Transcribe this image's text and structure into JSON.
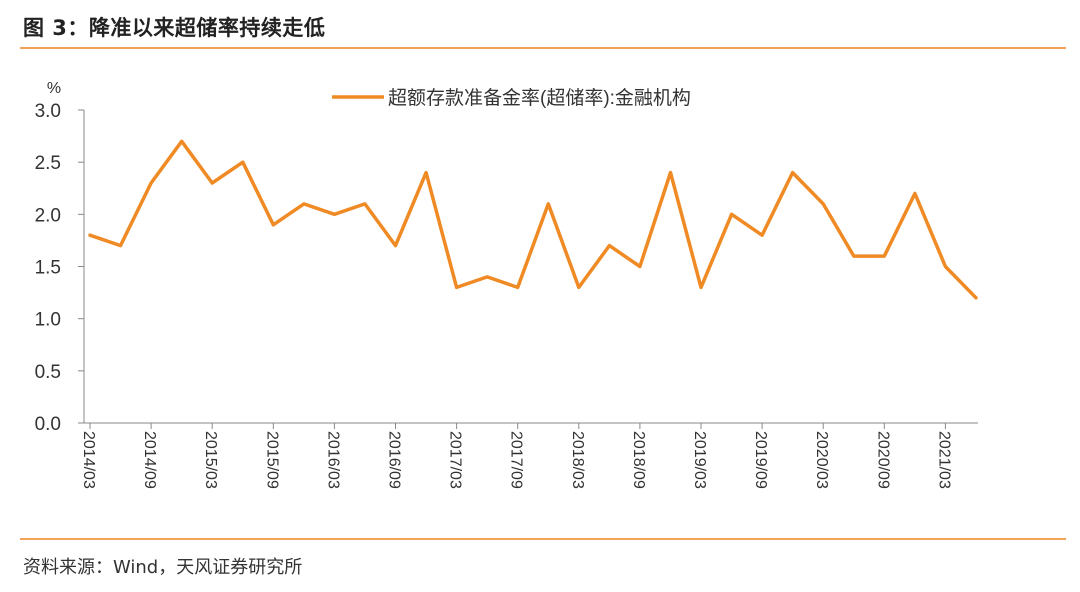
{
  "figure": {
    "title": "图 3：降准以来超储率持续走低",
    "source": "资料来源：Wind，天风证券研究所",
    "accent_color": "#F08A24"
  },
  "chart_data": {
    "type": "line",
    "ylabel": "%",
    "ylim": [
      0.0,
      3.0
    ],
    "yticks": [
      "3.0",
      "2.5",
      "2.0",
      "1.5",
      "1.0",
      "0.5",
      "0.0"
    ],
    "xticks": [
      "2014/03",
      "2014/09",
      "2015/03",
      "2015/09",
      "2016/03",
      "2016/09",
      "2017/03",
      "2017/09",
      "2018/03",
      "2018/09",
      "2019/03",
      "2019/09",
      "2020/03",
      "2020/09",
      "2021/03"
    ],
    "legend_position": "top-center",
    "grid": false,
    "series": [
      {
        "name": "超额存款准备金率(超储率):金融机构",
        "color": "#F08A24",
        "x": [
          "2014/03",
          "2014/06",
          "2014/09",
          "2014/12",
          "2015/03",
          "2015/06",
          "2015/09",
          "2015/12",
          "2016/03",
          "2016/06",
          "2016/09",
          "2016/12",
          "2017/03",
          "2017/06",
          "2017/09",
          "2017/12",
          "2018/03",
          "2018/06",
          "2018/09",
          "2018/12",
          "2019/03",
          "2019/06",
          "2019/09",
          "2019/12",
          "2020/03",
          "2020/06",
          "2020/09",
          "2020/12",
          "2021/03",
          "2021/06"
        ],
        "values": [
          1.8,
          1.7,
          2.3,
          2.7,
          2.3,
          2.5,
          1.9,
          2.1,
          2.0,
          2.1,
          1.7,
          2.4,
          1.3,
          1.4,
          1.3,
          2.1,
          1.3,
          1.7,
          1.5,
          2.4,
          1.3,
          2.0,
          1.8,
          2.4,
          2.1,
          1.6,
          1.6,
          2.2,
          1.5,
          1.2
        ]
      }
    ]
  }
}
